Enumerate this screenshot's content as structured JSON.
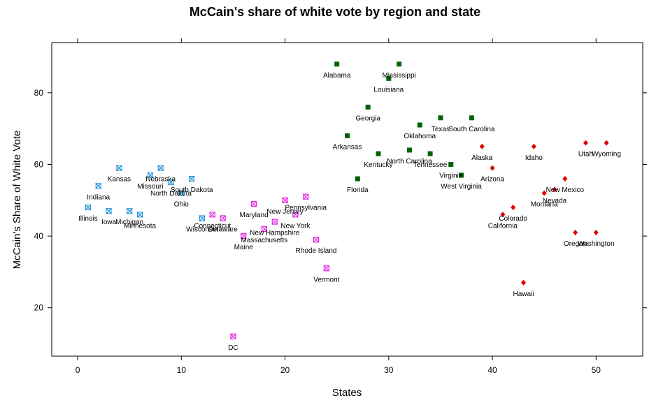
{
  "chart_data": {
    "type": "scatter",
    "title": "McCain's share of white vote by region and state",
    "xlabel": "States",
    "ylabel": "McCain's Share of White Vote",
    "xlim": [
      -2.5,
      54.5
    ],
    "ylim": [
      6.5,
      94
    ],
    "x_ticks": [
      0,
      10,
      20,
      30,
      40,
      50
    ],
    "y_ticks": [
      20,
      40,
      60,
      80
    ],
    "grid": false,
    "legend": "none",
    "series": [
      {
        "region": "Midwest",
        "marker": "x-square",
        "color": "#1e90d6",
        "points": [
          {
            "x": 1,
            "y": 48,
            "label": "Illinois"
          },
          {
            "x": 2,
            "y": 54,
            "label": "Indiana"
          },
          {
            "x": 3,
            "y": 47,
            "label": "Iowa"
          },
          {
            "x": 4,
            "y": 59,
            "label": "Kansas"
          },
          {
            "x": 5,
            "y": 47,
            "label": "Michigan"
          },
          {
            "x": 6,
            "y": 46,
            "label": "Minnesota"
          },
          {
            "x": 7,
            "y": 57,
            "label": "Missouri"
          },
          {
            "x": 8,
            "y": 59,
            "label": "Nebraska"
          },
          {
            "x": 9,
            "y": 55,
            "label": "North Dakota"
          },
          {
            "x": 10,
            "y": 52,
            "label": "Ohio"
          },
          {
            "x": 11,
            "y": 56,
            "label": "South Dakota"
          },
          {
            "x": 12,
            "y": 45,
            "label": "Wisconsin"
          }
        ]
      },
      {
        "region": "Northeast",
        "marker": "boxed-x",
        "color": "#e020e0",
        "points": [
          {
            "x": 13,
            "y": 46,
            "label": "Connecticut"
          },
          {
            "x": 14,
            "y": 45,
            "label": "Delaware"
          },
          {
            "x": 15,
            "y": 12,
            "label": "DC"
          },
          {
            "x": 16,
            "y": 40,
            "label": "Maine"
          },
          {
            "x": 17,
            "y": 49,
            "label": "Maryland"
          },
          {
            "x": 18,
            "y": 42,
            "label": "Massachusetts"
          },
          {
            "x": 19,
            "y": 44,
            "label": "New Hampshire"
          },
          {
            "x": 20,
            "y": 50,
            "label": "New Jersey"
          },
          {
            "x": 21,
            "y": 46,
            "label": "New York"
          },
          {
            "x": 22,
            "y": 51,
            "label": "Pennsylvania"
          },
          {
            "x": 23,
            "y": 39,
            "label": "Rhode Island"
          },
          {
            "x": 24,
            "y": 31,
            "label": "Vermont"
          }
        ]
      },
      {
        "region": "South",
        "marker": "filled-square",
        "color": "#006400",
        "points": [
          {
            "x": 25,
            "y": 88,
            "label": "Alabama"
          },
          {
            "x": 26,
            "y": 68,
            "label": "Arkansas"
          },
          {
            "x": 27,
            "y": 56,
            "label": "Florida"
          },
          {
            "x": 28,
            "y": 76,
            "label": "Georgia"
          },
          {
            "x": 29,
            "y": 63,
            "label": "Kentucky"
          },
          {
            "x": 30,
            "y": 84,
            "label": "Louisiana"
          },
          {
            "x": 31,
            "y": 88,
            "label": "Mississippi"
          },
          {
            "x": 32,
            "y": 64,
            "label": "North Carolina"
          },
          {
            "x": 33,
            "y": 71,
            "label": "Oklahoma"
          },
          {
            "x": 34,
            "y": 63,
            "label": "Tennessee"
          },
          {
            "x": 35,
            "y": 73,
            "label": "Texas"
          },
          {
            "x": 36,
            "y": 60,
            "label": "Virginia"
          },
          {
            "x": 37,
            "y": 57,
            "label": "West Virginia"
          },
          {
            "x": 38,
            "y": 73,
            "label": "South Carolina"
          }
        ]
      },
      {
        "region": "West",
        "marker": "filled-diamond",
        "color": "#e00000",
        "points": [
          {
            "x": 39,
            "y": 65,
            "label": "Alaska"
          },
          {
            "x": 40,
            "y": 59,
            "label": "Arizona"
          },
          {
            "x": 41,
            "y": 46,
            "label": "California"
          },
          {
            "x": 42,
            "y": 48,
            "label": "Colorado"
          },
          {
            "x": 43,
            "y": 27,
            "label": "Hawaii"
          },
          {
            "x": 44,
            "y": 65,
            "label": "Idaho"
          },
          {
            "x": 45,
            "y": 52,
            "label": "Montana"
          },
          {
            "x": 46,
            "y": 53,
            "label": "Nevada"
          },
          {
            "x": 47,
            "y": 56,
            "label": "New Mexico"
          },
          {
            "x": 48,
            "y": 41,
            "label": "Oregon"
          },
          {
            "x": 49,
            "y": 66,
            "label": "Utah"
          },
          {
            "x": 50,
            "y": 41,
            "label": "Washington"
          },
          {
            "x": 51,
            "y": 66,
            "label": "Wyoming"
          }
        ]
      }
    ]
  }
}
